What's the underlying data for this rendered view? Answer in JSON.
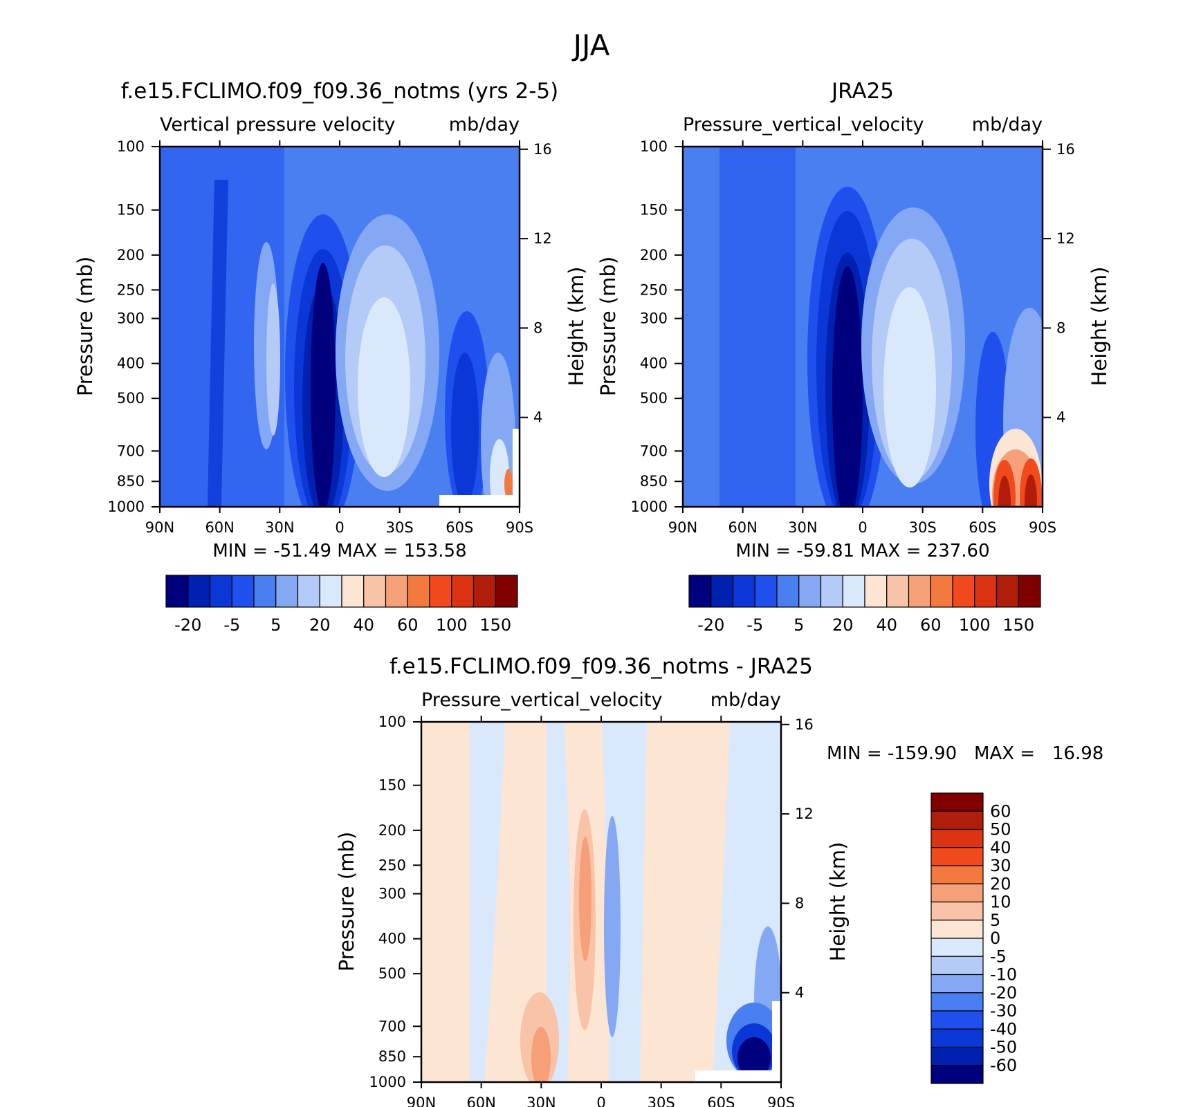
{
  "figure_title": "JJA",
  "colors": {
    "abs_scale": [
      "#00007f",
      "#0020b0",
      "#0a37d6",
      "#1f50ee",
      "#4a7ff2",
      "#84a8f4",
      "#b4caf7",
      "#d9e8fb",
      "#fde5d4",
      "#f8c3a6",
      "#f6a07a",
      "#f4793f",
      "#f14a1c",
      "#dc3412",
      "#b01e0b",
      "#800000"
    ],
    "diff_scale": [
      "#00007f",
      "#0020b0",
      "#0a37d6",
      "#1f50ee",
      "#4a7ff2",
      "#84a8f4",
      "#b4caf7",
      "#d9e8fb",
      "#fde5d4",
      "#f8c3a6",
      "#f6a07a",
      "#f4793f",
      "#f14a1c",
      "#dc3412",
      "#b01e0b",
      "#800000"
    ]
  },
  "chart_data": [
    {
      "id": "model",
      "type": "heatmap",
      "title": "f.e15.FCLIMO.f09_f09.36_notms (yrs 2-5)",
      "subtitle_left": "Vertical pressure velocity",
      "subtitle_right": "mb/day",
      "x_ticks": [
        "90N",
        "60N",
        "30N",
        "0",
        "30S",
        "60S",
        "90S"
      ],
      "y_ticks": [
        "100",
        "150",
        "200",
        "250",
        "300",
        "400",
        "500",
        "700",
        "850",
        "1000"
      ],
      "y2_ticks": [
        "16",
        "12",
        "8",
        "4"
      ],
      "ylabel": "Pressure (mb)",
      "y2label": "Height (km)",
      "stats": "MIN = -51.49   MAX = 153.58",
      "colorbar_labels": [
        "-20",
        "-5",
        "5",
        "20",
        "40",
        "60",
        "100",
        "150"
      ],
      "features": [
        {
          "lat": -12,
          "p": 500,
          "value": -25
        },
        {
          "lat": 20,
          "p": 450,
          "value": 22
        },
        {
          "lat": 55,
          "p": 450,
          "value": -18
        },
        {
          "lat": 75,
          "p": 850,
          "value": 120
        }
      ]
    },
    {
      "id": "obs",
      "type": "heatmap",
      "title": "JRA25",
      "subtitle_left": "Pressure_vertical_velocity",
      "subtitle_right": "mb/day",
      "x_ticks": [
        "90N",
        "60N",
        "30N",
        "0",
        "30S",
        "60S",
        "90S"
      ],
      "y_ticks": [
        "100",
        "150",
        "200",
        "250",
        "300",
        "400",
        "500",
        "700",
        "850",
        "1000"
      ],
      "y2_ticks": [
        "16",
        "12",
        "8",
        "4"
      ],
      "ylabel": "Pressure (mb)",
      "y2label": "Height (km)",
      "stats": "MIN = -59.81   MAX = 237.60",
      "colorbar_labels": [
        "-20",
        "-5",
        "5",
        "20",
        "40",
        "60",
        "100",
        "150"
      ],
      "features": [
        {
          "lat": -12,
          "p": 500,
          "value": -30
        },
        {
          "lat": 20,
          "p": 450,
          "value": 25
        },
        {
          "lat": 80,
          "p": 850,
          "value": 200
        }
      ]
    },
    {
      "id": "diff",
      "type": "heatmap",
      "title": "f.e15.FCLIMO.f09_f09.36_notms - JRA25",
      "subtitle_left": "Pressure_vertical_velocity",
      "subtitle_right": "mb/day",
      "x_ticks": [
        "90N",
        "60N",
        "30N",
        "0",
        "30S",
        "60S",
        "90S"
      ],
      "y_ticks": [
        "100",
        "150",
        "200",
        "250",
        "300",
        "400",
        "500",
        "700",
        "850",
        "1000"
      ],
      "y2_ticks": [
        "16",
        "12",
        "8",
        "4"
      ],
      "ylabel": "Pressure (mb)",
      "y2label": "Height (km)",
      "stats": "MIN = -159.90   MAX =   16.98",
      "colorbar_labels": [
        "60",
        "50",
        "40",
        "30",
        "20",
        "10",
        "5",
        "0",
        "-5",
        "-10",
        "-20",
        "-30",
        "-40",
        "-50",
        "-60"
      ],
      "features": [
        {
          "lat": 30,
          "p": 900,
          "value": 20
        },
        {
          "lat": 10,
          "p": 350,
          "value": 15
        },
        {
          "lat": -78,
          "p": 850,
          "value": -150
        }
      ]
    }
  ]
}
